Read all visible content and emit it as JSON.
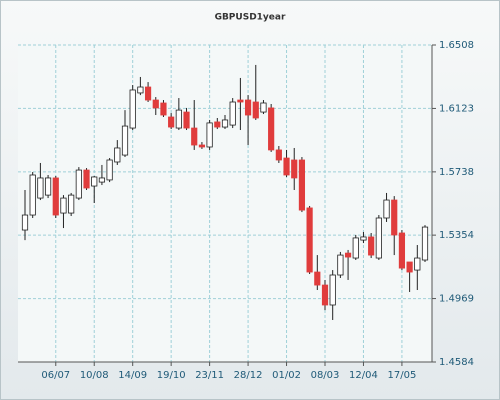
{
  "chart_data": {
    "type": "candlestick",
    "title": "GBPUSD1year",
    "categories": [
      null,
      null,
      null,
      null,
      "06/07",
      null,
      null,
      null,
      null,
      "10/08",
      null,
      null,
      null,
      null,
      "14/09",
      null,
      null,
      null,
      null,
      "19/10",
      null,
      null,
      null,
      null,
      "23/11",
      null,
      null,
      null,
      null,
      "28/12",
      null,
      null,
      null,
      null,
      "01/02",
      null,
      null,
      null,
      null,
      "08/03",
      null,
      null,
      null,
      null,
      "12/04",
      null,
      null,
      null,
      null,
      "17/05",
      null,
      null,
      null
    ],
    "series": [
      {
        "up_color": "#ffffff",
        "down_color": "#e03c3c",
        "edge_color": "#222222",
        "open": [
          1.5385,
          1.5476,
          1.5579,
          1.5597,
          1.5701,
          1.5488,
          1.5488,
          1.5579,
          1.5749,
          1.5652,
          1.5676,
          1.5689,
          1.5798,
          1.584,
          1.6004,
          1.6217,
          1.6253,
          1.6174,
          1.6156,
          1.6071,
          1.6004,
          1.6101,
          1.6004,
          1.5901,
          1.5889,
          1.6041,
          1.601,
          1.6022,
          1.6174,
          1.6174,
          1.6162,
          1.6101,
          1.6126,
          1.5871,
          1.5822,
          1.581,
          1.581,
          1.5519,
          1.513,
          1.5051,
          1.493,
          1.5112,
          1.5245,
          1.5215,
          1.5324,
          1.5343,
          1.5215,
          1.5458,
          1.5567,
          1.5367,
          1.5191,
          1.5142,
          1.5203
        ],
        "high": [
          1.5628,
          1.5737,
          1.5792,
          1.5719,
          1.5713,
          1.5597,
          1.561,
          1.5767,
          1.5761,
          1.5713,
          1.578,
          1.5822,
          1.5931,
          1.6113,
          1.6265,
          1.6314,
          1.6283,
          1.6192,
          1.6174,
          1.6095,
          1.6186,
          1.6126,
          1.6174,
          1.5919,
          1.6053,
          1.6065,
          1.6083,
          1.6186,
          1.6308,
          1.6204,
          1.6387,
          1.6174,
          1.615,
          1.5895,
          1.5871,
          1.5883,
          1.5828,
          1.5531,
          1.5233,
          1.5082,
          1.5142,
          1.5252,
          1.5264,
          1.5355,
          1.5373,
          1.5367,
          1.5476,
          1.561,
          1.5591,
          1.5385,
          1.5191,
          1.5294,
          1.5415
        ],
        "low": [
          1.5324,
          1.5458,
          1.5567,
          1.5579,
          1.5458,
          1.5397,
          1.547,
          1.5567,
          1.5628,
          1.5549,
          1.5658,
          1.5676,
          1.578,
          1.5828,
          1.5992,
          1.6204,
          1.6162,
          1.6083,
          1.6071,
          1.5998,
          1.5992,
          1.5992,
          1.5871,
          1.5877,
          1.5871,
          1.5998,
          1.5998,
          1.6004,
          1.5992,
          1.5901,
          1.6053,
          1.6089,
          1.5859,
          1.5792,
          1.5707,
          1.5628,
          1.5494,
          1.5118,
          1.5021,
          1.4899,
          1.4839,
          1.5094,
          1.5082,
          1.5203,
          1.5306,
          1.5215,
          1.5203,
          1.5434,
          1.5233,
          1.5142,
          1.5009,
          1.5021,
          1.5191
        ],
        "close": [
          1.5476,
          1.5719,
          1.5701,
          1.5701,
          1.5476,
          1.5579,
          1.5597,
          1.5749,
          1.564,
          1.5707,
          1.5701,
          1.581,
          1.5883,
          1.6016,
          1.6235,
          1.6253,
          1.6174,
          1.6126,
          1.6083,
          1.601,
          1.6113,
          1.6004,
          1.5901,
          1.5889,
          1.6035,
          1.601,
          1.6053,
          1.6162,
          1.6162,
          1.6083,
          1.6065,
          1.6156,
          1.5871,
          1.581,
          1.5719,
          1.5701,
          1.5506,
          1.513,
          1.5051,
          1.493,
          1.5112,
          1.5233,
          1.5221,
          1.5337,
          1.5343,
          1.5233,
          1.5458,
          1.5567,
          1.5355,
          1.5154,
          1.513,
          1.5215,
          1.5403
        ]
      }
    ],
    "ylim": [
      1.4584,
      1.6508
    ],
    "yticks": [
      {
        "value": 1.4584,
        "label": "1.4584"
      },
      {
        "value": 1.4969,
        "label": "1.4969"
      },
      {
        "value": 1.5354,
        "label": "1.5354"
      },
      {
        "value": 1.5738,
        "label": "1.5738"
      },
      {
        "value": 1.6123,
        "label": "1.6123"
      },
      {
        "value": 1.6508,
        "label": "1.6508"
      }
    ],
    "grid": true,
    "y_axis_side": "right"
  }
}
